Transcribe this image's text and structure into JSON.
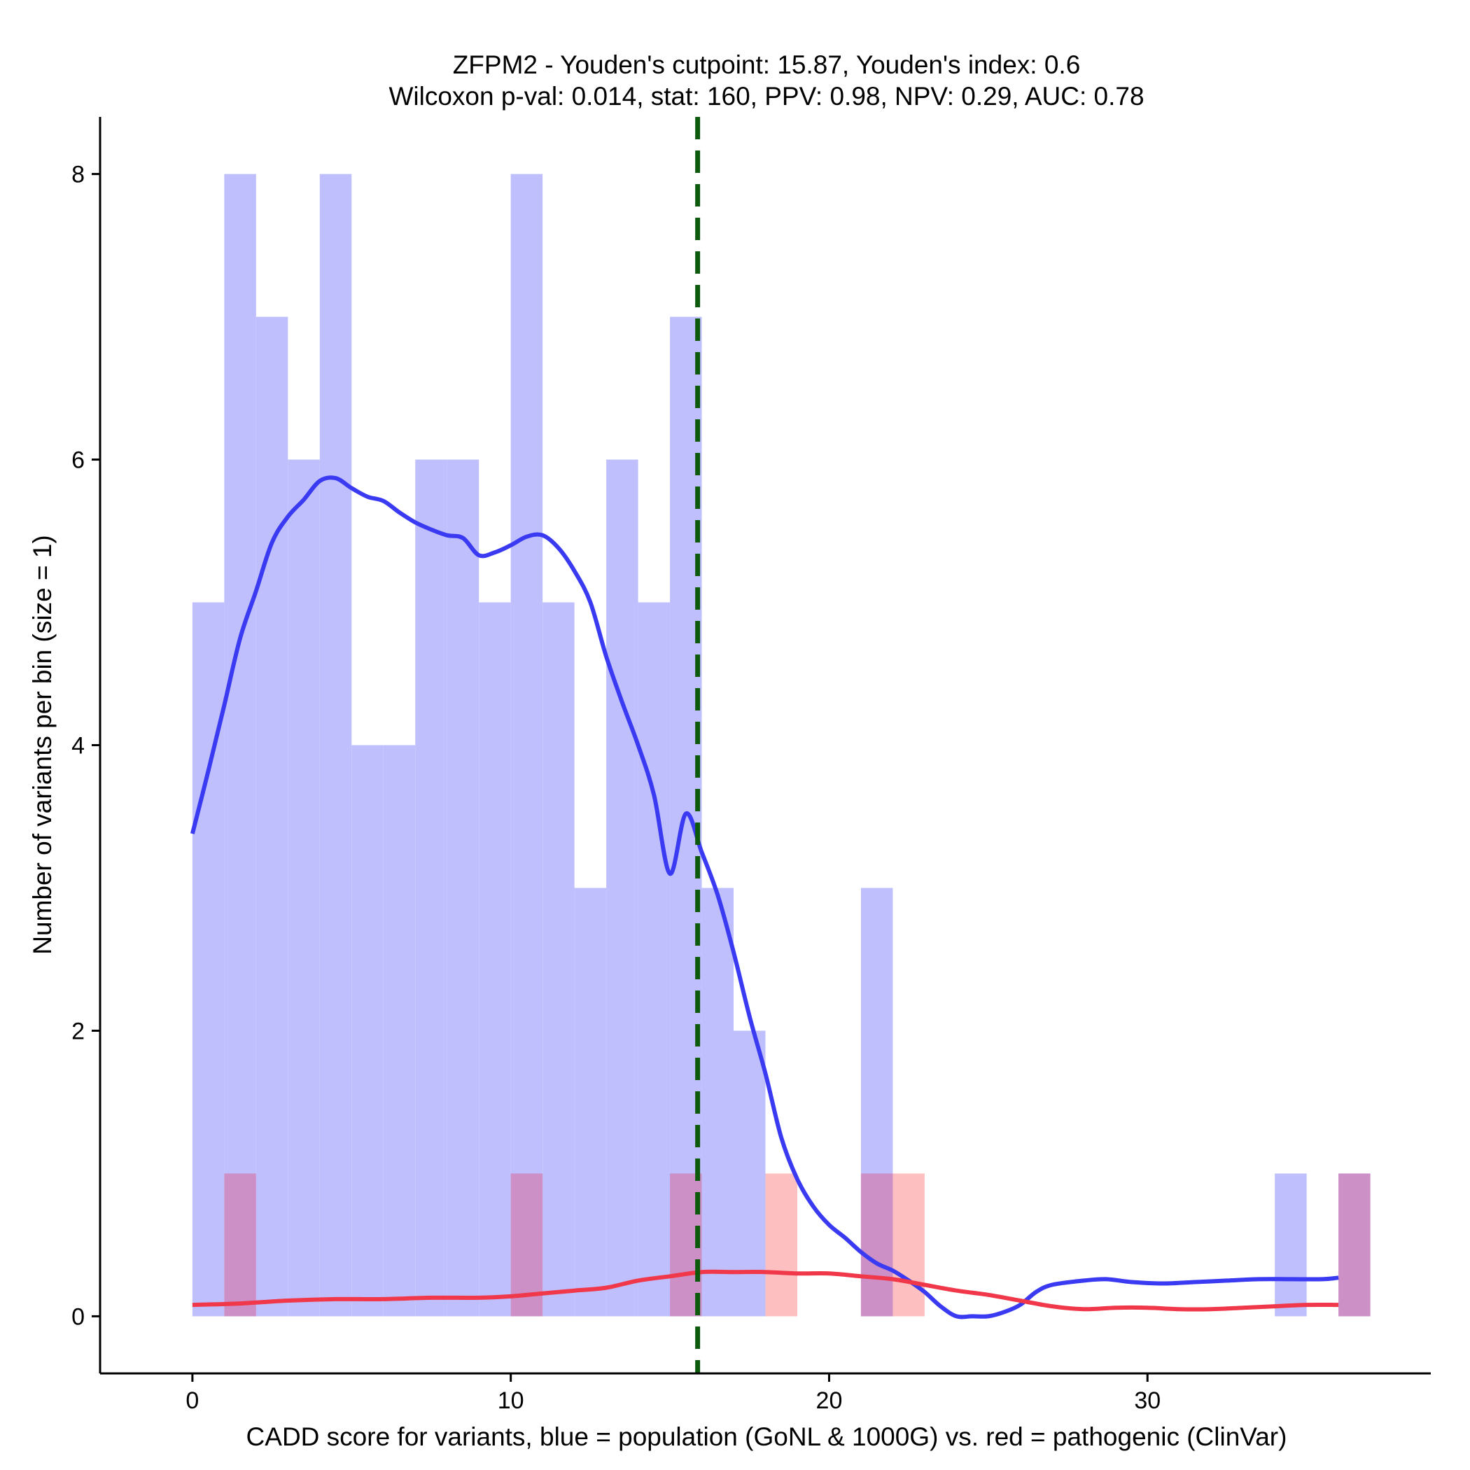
{
  "chart_data": {
    "type": "histogram",
    "title_line1": "ZFPM2 - Youden's cutpoint: 15.87, Youden's index: 0.6",
    "title_line2": "Wilcoxon p-val: 0.014, stat: 160, PPV: 0.98, NPV: 0.29, AUC: 0.78",
    "xlabel": "CADD score for variants, blue = population (GoNL & 1000G) vs. red = pathogenic (ClinVar)",
    "ylabel": "Number of variants per bin (size = 1)",
    "xlim": [
      -2.9,
      38.9
    ],
    "ylim": [
      -0.4,
      8.4
    ],
    "xticks": [
      0,
      10,
      20,
      30
    ],
    "yticks": [
      0,
      2,
      4,
      6,
      8
    ],
    "bin_width": 1,
    "cutpoint": 15.87,
    "colors": {
      "population_fill": "#bfbffd",
      "pathogenic_fill": "#fdbfbf",
      "overlap_fill": "#cc90c6",
      "population_line": "#3a3af2",
      "pathogenic_line": "#f0384a",
      "cutpoint_line": "#0d5a0d",
      "axis": "#000000"
    },
    "series": [
      {
        "name": "population (GoNL & 1000G)",
        "bins": [
          {
            "start": 0,
            "count": 5
          },
          {
            "start": 1,
            "count": 8
          },
          {
            "start": 2,
            "count": 7
          },
          {
            "start": 3,
            "count": 6
          },
          {
            "start": 4,
            "count": 8
          },
          {
            "start": 5,
            "count": 4
          },
          {
            "start": 6,
            "count": 4
          },
          {
            "start": 7,
            "count": 6
          },
          {
            "start": 8,
            "count": 6
          },
          {
            "start": 9,
            "count": 5
          },
          {
            "start": 10,
            "count": 8
          },
          {
            "start": 11,
            "count": 5
          },
          {
            "start": 12,
            "count": 3
          },
          {
            "start": 13,
            "count": 6
          },
          {
            "start": 14,
            "count": 5
          },
          {
            "start": 15,
            "count": 7
          },
          {
            "start": 16,
            "count": 3
          },
          {
            "start": 17,
            "count": 2
          },
          {
            "start": 21,
            "count": 3
          },
          {
            "start": 34,
            "count": 1
          },
          {
            "start": 36,
            "count": 1
          }
        ],
        "density": {
          "x": [
            0,
            0.5,
            1,
            1.5,
            2,
            2.5,
            3,
            3.5,
            4,
            4.5,
            5,
            5.5,
            6,
            6.5,
            7,
            7.5,
            8,
            8.5,
            9,
            9.5,
            10,
            10.5,
            11,
            11.5,
            12,
            12.5,
            13,
            13.5,
            14,
            14.5,
            15,
            15.5,
            16,
            16.5,
            17,
            17.5,
            18,
            18.5,
            19,
            19.5,
            20,
            20.5,
            21,
            21.5,
            22,
            22.5,
            23,
            23.5,
            24,
            24.5,
            25,
            25.5,
            26,
            26.5,
            27,
            28,
            28.7,
            29.5,
            30.5,
            31.5,
            32.5,
            33.5,
            34.5,
            35.5,
            36
          ],
          "y": [
            3.38,
            3.82,
            4.28,
            4.75,
            5.08,
            5.42,
            5.6,
            5.72,
            5.85,
            5.87,
            5.8,
            5.74,
            5.71,
            5.63,
            5.56,
            5.51,
            5.47,
            5.45,
            5.33,
            5.35,
            5.4,
            5.46,
            5.47,
            5.38,
            5.22,
            5.0,
            4.62,
            4.3,
            4.0,
            3.65,
            3.1,
            3.52,
            3.25,
            2.95,
            2.55,
            2.1,
            1.7,
            1.25,
            0.96,
            0.77,
            0.64,
            0.55,
            0.45,
            0.37,
            0.32,
            0.25,
            0.17,
            0.07,
            0,
            0,
            0,
            0.03,
            0.08,
            0.17,
            0.22,
            0.25,
            0.26,
            0.24,
            0.23,
            0.24,
            0.25,
            0.26,
            0.26,
            0.26,
            0.27
          ],
          "x_range": [
            0,
            36
          ]
        }
      },
      {
        "name": "pathogenic (ClinVar)",
        "bins": [
          {
            "start": 1,
            "count": 1
          },
          {
            "start": 10,
            "count": 1
          },
          {
            "start": 15,
            "count": 1
          },
          {
            "start": 18,
            "count": 1
          },
          {
            "start": 21,
            "count": 1
          },
          {
            "start": 22,
            "count": 1
          },
          {
            "start": 36,
            "count": 1
          }
        ],
        "density": {
          "x": [
            0,
            1.5,
            3,
            4.5,
            6,
            7.5,
            9,
            10,
            11,
            12,
            13,
            14,
            15,
            16,
            17,
            18,
            19,
            20,
            21,
            22,
            23,
            24,
            25,
            26,
            27,
            28,
            29,
            30,
            31,
            32,
            33,
            34,
            35,
            36
          ],
          "y": [
            0.08,
            0.09,
            0.11,
            0.12,
            0.12,
            0.13,
            0.13,
            0.14,
            0.16,
            0.18,
            0.2,
            0.25,
            0.28,
            0.31,
            0.31,
            0.31,
            0.3,
            0.3,
            0.28,
            0.26,
            0.22,
            0.18,
            0.15,
            0.11,
            0.07,
            0.05,
            0.06,
            0.06,
            0.05,
            0.05,
            0.06,
            0.07,
            0.08,
            0.08
          ],
          "x_range": [
            0,
            36
          ]
        }
      }
    ]
  }
}
